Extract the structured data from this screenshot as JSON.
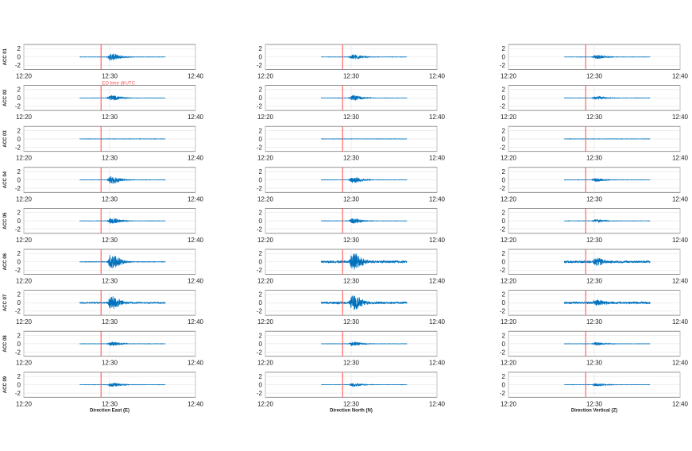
{
  "chart_data": {
    "type": "line",
    "layout": "9 rows x 3 columns of time-series subplots",
    "rows": [
      "ACC 01",
      "ACC 02",
      "ACC 03",
      "ACC 04",
      "ACC 05",
      "ACC 06",
      "ACC 07",
      "ACC 08",
      "ACC 09"
    ],
    "columns": [
      "Direction East (E)",
      "Direction North (N)",
      "Direction Vertical (Z)"
    ],
    "x_tick_labels": [
      "12:20",
      "12:30",
      "12:40"
    ],
    "xlim_minutes": [
      0,
      20
    ],
    "y_ticks": [
      2,
      0,
      -2
    ],
    "y_tick_labels": [
      "2",
      "0",
      "-2"
    ],
    "ylim": [
      -3,
      3
    ],
    "grid": true,
    "trace_color": "#0072bd",
    "signal_window_minutes": [
      6.5,
      16.5
    ],
    "event_line": {
      "x_minutes": 9.0,
      "color": "#ff5555",
      "label": "EQ time @UTC"
    },
    "series": [
      {
        "sensor": "ACC 01",
        "E": {
          "peak": 0.8,
          "peak_at_minutes": 10.5,
          "noise": 0.03
        },
        "N": {
          "peak": 0.6,
          "peak_at_minutes": 10.5,
          "noise": 0.03
        },
        "Z": {
          "peak": 0.45,
          "peak_at_minutes": 10.5,
          "noise": 0.03
        }
      },
      {
        "sensor": "ACC 02",
        "E": {
          "peak": 0.6,
          "peak_at_minutes": 10.5,
          "noise": 0.03
        },
        "N": {
          "peak": 0.6,
          "peak_at_minutes": 10.5,
          "noise": 0.03
        },
        "Z": {
          "peak": 0.4,
          "peak_at_minutes": 10.5,
          "noise": 0.03
        }
      },
      {
        "sensor": "ACC 03",
        "E": {
          "peak": 0.0,
          "peak_at_minutes": 10.5,
          "noise": 0.03
        },
        "N": {
          "peak": 0.0,
          "peak_at_minutes": 10.5,
          "noise": 0.03
        },
        "Z": {
          "peak": 0.0,
          "peak_at_minutes": 10.5,
          "noise": 0.03
        }
      },
      {
        "sensor": "ACC 04",
        "E": {
          "peak": 0.9,
          "peak_at_minutes": 10.5,
          "noise": 0.03
        },
        "N": {
          "peak": 0.75,
          "peak_at_minutes": 10.5,
          "noise": 0.03
        },
        "Z": {
          "peak": 0.4,
          "peak_at_minutes": 10.5,
          "noise": 0.03
        }
      },
      {
        "sensor": "ACC 05",
        "E": {
          "peak": 0.7,
          "peak_at_minutes": 10.5,
          "noise": 0.03
        },
        "N": {
          "peak": 0.6,
          "peak_at_minutes": 10.5,
          "noise": 0.03
        },
        "Z": {
          "peak": 0.4,
          "peak_at_minutes": 10.5,
          "noise": 0.03
        }
      },
      {
        "sensor": "ACC 06",
        "E": {
          "peak": 1.8,
          "peak_at_minutes": 10.5,
          "noise": 0.05
        },
        "N": {
          "peak": 2.0,
          "peak_at_minutes": 10.5,
          "noise": 0.25
        },
        "Z": {
          "peak": 0.8,
          "peak_at_minutes": 10.5,
          "noise": 0.25
        }
      },
      {
        "sensor": "ACC 07",
        "E": {
          "peak": 1.5,
          "peak_at_minutes": 10.5,
          "noise": 0.15
        },
        "N": {
          "peak": 1.8,
          "peak_at_minutes": 10.5,
          "noise": 0.25
        },
        "Z": {
          "peak": 0.6,
          "peak_at_minutes": 10.5,
          "noise": 0.25
        }
      },
      {
        "sensor": "ACC 08",
        "E": {
          "peak": 0.5,
          "peak_at_minutes": 10.5,
          "noise": 0.03
        },
        "N": {
          "peak": 0.5,
          "peak_at_minutes": 10.5,
          "noise": 0.03
        },
        "Z": {
          "peak": 0.35,
          "peak_at_minutes": 10.5,
          "noise": 0.03
        }
      },
      {
        "sensor": "ACC 09",
        "E": {
          "peak": 0.5,
          "peak_at_minutes": 10.5,
          "noise": 0.03
        },
        "N": {
          "peak": 0.45,
          "peak_at_minutes": 10.5,
          "noise": 0.03
        },
        "Z": {
          "peak": 0.35,
          "peak_at_minutes": 10.5,
          "noise": 0.03
        }
      }
    ]
  }
}
